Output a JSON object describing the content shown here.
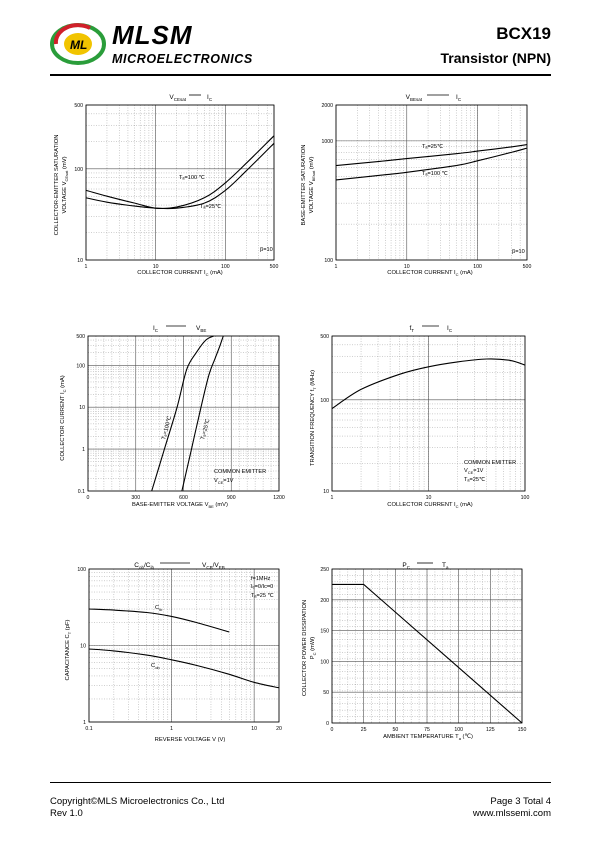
{
  "header": {
    "brand": "MLSM",
    "subtitle": "MICROELECTRONICS",
    "part_number": "BCX19",
    "part_type": "Transistor  (NPN)"
  },
  "footer": {
    "copyright": "Copyright©MLS Microelectronics Co., Ltd",
    "revision": "Rev 1.0",
    "page": "Page 3 Total 4",
    "website": "www.mlssemi.com"
  },
  "chart_data": [
    {
      "type": "line",
      "title": "VCEsat — IC",
      "xlabel": "COLLECTOR CURRENT  IC  (mA)",
      "ylabel": "COLLECTOR-EMITTER SATURATION VOLTAGE  VCEsat  (mV)",
      "xscale": "log",
      "yscale": "log",
      "xlim": [
        1,
        500
      ],
      "ylim": [
        10,
        500
      ],
      "xticks": [
        1,
        10,
        100,
        500
      ],
      "yticks": [
        10,
        100,
        500
      ],
      "annotation": "β=10",
      "series": [
        {
          "name": "Ta=100 ℃",
          "x": [
            1,
            2,
            5,
            10,
            20,
            50,
            100,
            200,
            500
          ],
          "y": [
            58,
            50,
            42,
            37,
            38,
            48,
            70,
            115,
            230
          ]
        },
        {
          "name": "Ta=25℃",
          "x": [
            1,
            2,
            5,
            10,
            20,
            50,
            100,
            200,
            500
          ],
          "y": [
            48,
            43,
            39,
            37,
            37,
            42,
            58,
            95,
            190
          ]
        }
      ]
    },
    {
      "type": "line",
      "title": "VBEsat — IC",
      "xlabel": "COLLECTOR CURRENT  IC  (mA)",
      "ylabel": "BASE-EMITTER SATURATION VOLTAGE  VBEsat  (mV)",
      "xscale": "log",
      "yscale": "log",
      "xlim": [
        1,
        500
      ],
      "ylim": [
        100,
        2000
      ],
      "xticks": [
        1,
        10,
        100,
        500
      ],
      "yticks": [
        100,
        1000,
        2000
      ],
      "annotation": "β=10",
      "series": [
        {
          "name": "Ta=25℃",
          "x": [
            1,
            5,
            10,
            50,
            100,
            300,
            500
          ],
          "y": [
            620,
            680,
            710,
            780,
            820,
            890,
            930
          ]
        },
        {
          "name": "Ta=100 ℃",
          "x": [
            1,
            5,
            10,
            50,
            100,
            300,
            500
          ],
          "y": [
            470,
            520,
            545,
            620,
            680,
            800,
            870
          ]
        }
      ]
    },
    {
      "type": "line",
      "title": "IC — VBE",
      "xlabel": "BASE-EMITTER VOLTAGE  VBE  (mV)",
      "ylabel": "COLLECTOR CURRENT  IC  (mA)",
      "xscale": "linear",
      "yscale": "log",
      "xlim": [
        0,
        1200
      ],
      "ylim": [
        0.1,
        500
      ],
      "xticks": [
        0,
        300,
        600,
        900,
        1200
      ],
      "yticks": [
        0.1,
        1,
        10,
        100,
        500
      ],
      "annotation": "COMMON EMITTER\nVCE=1V",
      "series": [
        {
          "name": "Ta=100℃",
          "x": [
            400,
            480,
            560,
            620,
            680,
            740,
            790
          ],
          "y": [
            0.1,
            1,
            10,
            80,
            200,
            400,
            500
          ]
        },
        {
          "name": "Ta=25℃",
          "x": [
            590,
            650,
            710,
            760,
            800,
            830,
            850
          ],
          "y": [
            0.1,
            1,
            10,
            60,
            150,
            300,
            500
          ]
        }
      ]
    },
    {
      "type": "line",
      "title": "fT — IC",
      "xlabel": "COLLECTOR CURRENT  IC  (mA)",
      "ylabel": "TRANSITION FREQUENCY  fT  (MHz)",
      "xscale": "log",
      "yscale": "log",
      "xlim": [
        1,
        100
      ],
      "ylim": [
        10,
        500
      ],
      "xticks": [
        1,
        10,
        100
      ],
      "yticks": [
        10,
        100,
        500
      ],
      "annotation": "COMMON EMITTER\nVCE=1V\nTa=25℃",
      "series": [
        {
          "name": "",
          "x": [
            1,
            2,
            5,
            10,
            20,
            40,
            70,
            100
          ],
          "y": [
            80,
            130,
            190,
            230,
            260,
            280,
            270,
            240
          ]
        }
      ]
    },
    {
      "type": "line",
      "title": "Cob/Cib — VCB/VEB",
      "xlabel": "REVERSE  VOLTAGE  V  (V)",
      "ylabel": "CAPACITANCE  CT  (pF)",
      "xscale": "log",
      "yscale": "log",
      "xlim": [
        0.1,
        20
      ],
      "ylim": [
        1,
        100
      ],
      "xticks": [
        0.1,
        1,
        10,
        20
      ],
      "yticks": [
        1,
        10,
        100
      ],
      "annotation": "f=1MHz\nIE=0/IC=0\nTa=25 ℃",
      "series": [
        {
          "name": "Cib",
          "x": [
            0.1,
            0.2,
            0.5,
            1,
            2,
            5
          ],
          "y": [
            30,
            29,
            27,
            24,
            20,
            15
          ]
        },
        {
          "name": "Cob",
          "x": [
            0.1,
            0.2,
            0.5,
            1,
            2,
            5,
            10,
            20
          ],
          "y": [
            9,
            8.5,
            7.5,
            6.5,
            5.5,
            4.2,
            3.3,
            2.8
          ]
        }
      ]
    },
    {
      "type": "line",
      "title": "PC — Ta",
      "xlabel": "AMBIENT TEMPERATURE  Ta  (℃)",
      "ylabel": "COLLECTOR POWER DISSIPATION  PC  (mW)",
      "xscale": "linear",
      "yscale": "linear",
      "xlim": [
        0,
        150
      ],
      "ylim": [
        0,
        250
      ],
      "xticks": [
        0,
        25,
        50,
        75,
        100,
        125,
        150
      ],
      "yticks": [
        0,
        50,
        100,
        150,
        200,
        250
      ],
      "series": [
        {
          "name": "",
          "x": [
            0,
            25,
            150
          ],
          "y": [
            225,
            225,
            0
          ]
        }
      ]
    }
  ],
  "labels": {
    "c1": {
      "title_a": "V",
      "title_a_sub": "CEsat",
      "title_b": "I",
      "title_b_sub": "C",
      "xl_a": "COLLECTOR CURRENT   I",
      "xl_sub": "C",
      "xl_b": "   (mA)",
      "yl_line1": "COLLECTOR-EMITTER SATURATION",
      "yl_line2": "VOLTAGE   V",
      "yl_sub": "CEsat",
      "yl_unit": "   (mV)",
      "ann1": "Tₐ=100 ℃",
      "ann2": "Tₐ=25℃",
      "beta": "β=10"
    },
    "c2": {
      "title_a": "V",
      "title_a_sub": "BEsat",
      "title_b": "I",
      "title_b_sub": "C",
      "xl_a": "COLLECTOR CURRENT   I",
      "xl_sub": "C",
      "xl_b": "   (mA)",
      "yl_line1": "BASE-EMITTER SATURATION",
      "yl_line2": "VOLTAGE   V",
      "yl_sub": "BEsat",
      "yl_unit": "   (mV)",
      "ann1": "Tₐ=25℃",
      "ann2": "Tₐ=100 ℃",
      "beta": "β=10"
    },
    "c3": {
      "title_a": "I",
      "title_a_sub": "C",
      "title_b": "V",
      "title_b_sub": "BE",
      "xl_a": "BASE-EMITTER VOLTAGE   V",
      "xl_sub": "BE",
      "xl_b": "   (mV)",
      "yl_line1": "COLLECTOR CURRENT   I",
      "yl_sub": "C",
      "yl_unit": "   (mA)",
      "ann1": "Tₐ=100℃",
      "ann2": "Tₐ=25℃",
      "ce1": "COMMON EMITTER",
      "ce2": "V",
      "ce2_sub": "CE",
      "ce2_b": "=1V"
    },
    "c4": {
      "title_a": "f",
      "title_a_sub": "T",
      "title_b": "I",
      "title_b_sub": "C",
      "xl_a": "COLLECTOR CURRENT   I",
      "xl_sub": "C",
      "xl_b": "   (mA)",
      "yl_line1": "TRANSITION FREQUENCY   f",
      "yl_sub": "T",
      "yl_unit": "   (MHz)",
      "ce1": "COMMON EMITTER",
      "ce2": "V",
      "ce2_sub": "CE",
      "ce2_b": "=1V",
      "ce3": "Tₐ=25℃"
    },
    "c5": {
      "title_a": "C",
      "title_a_sub": "ob",
      "title_a2": "/C",
      "title_a2_sub": "ib",
      "title_b": "V",
      "title_b_sub": "CB",
      "title_b2": "/V",
      "title_b2_sub": "EB",
      "xl_a": "REVERSE  VOLTAGE   V   (V)",
      "yl_line1": "CAPACITANCE   C",
      "yl_sub": "T",
      "yl_unit": "   (pF)",
      "cib": "C",
      "cib_sub": "ib",
      "cob": "C",
      "cob_sub": "ob",
      "f1": "f=1MHz",
      "f2": "Iₑ=0/Iᴄ=0",
      "f3": "Tₐ=25 ℃"
    },
    "c6": {
      "title_a": "P",
      "title_a_sub": "C",
      "title_b": "T",
      "title_b_sub": "a",
      "xl_a": "AMBIENT TEMPERATURE   T",
      "xl_sub": "a",
      "xl_b": "   (℃)",
      "yl_line1": "COLLECTOR POWER DISSIPATION",
      "yl_line2": "P",
      "yl_sub": "C",
      "yl_unit": "   (mW)"
    }
  }
}
